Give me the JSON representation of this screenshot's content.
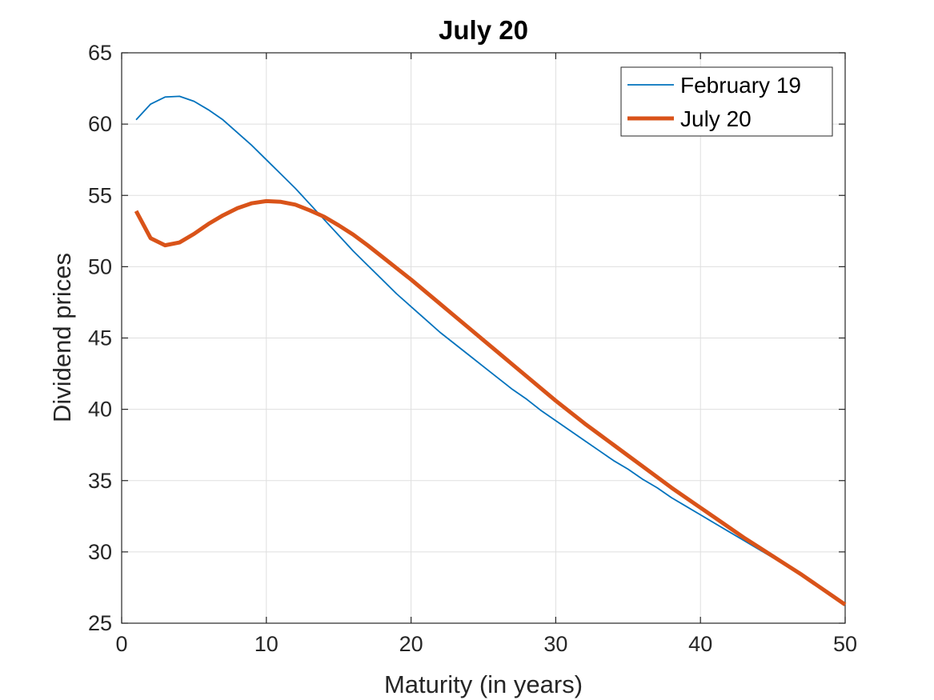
{
  "chart_data": {
    "type": "line",
    "title": "July 20",
    "xlabel": "Maturity (in years)",
    "ylabel": "Dividend prices",
    "xlim": [
      0,
      50
    ],
    "ylim": [
      25,
      65
    ],
    "xticks": [
      0,
      10,
      20,
      30,
      40,
      50
    ],
    "yticks": [
      25,
      30,
      35,
      40,
      45,
      50,
      55,
      60,
      65
    ],
    "grid": true,
    "legend_position": "top-right",
    "x": [
      1,
      2,
      3,
      4,
      5,
      6,
      7,
      8,
      9,
      10,
      11,
      12,
      13,
      14,
      15,
      16,
      17,
      18,
      19,
      20,
      21,
      22,
      23,
      24,
      25,
      26,
      27,
      28,
      29,
      30,
      31,
      32,
      33,
      34,
      35,
      36,
      37,
      38,
      39,
      40,
      41,
      42,
      43,
      44,
      45,
      46,
      47,
      48,
      49,
      50
    ],
    "series": [
      {
        "name": "February 19",
        "color": "#0072BD",
        "values": [
          60.3,
          61.4,
          61.9,
          61.95,
          61.6,
          61.0,
          60.3,
          59.4,
          58.5,
          57.5,
          56.5,
          55.5,
          54.4,
          53.3,
          52.2,
          51.1,
          50.1,
          49.1,
          48.1,
          47.2,
          46.3,
          45.4,
          44.6,
          43.8,
          43.0,
          42.2,
          41.4,
          40.7,
          39.9,
          39.2,
          38.5,
          37.8,
          37.1,
          36.4,
          35.8,
          35.1,
          34.5,
          33.8,
          33.2,
          32.6,
          32.0,
          31.4,
          30.8,
          30.2,
          29.6,
          29.0,
          28.4,
          27.7,
          27.0,
          26.3
        ]
      },
      {
        "name": "July 20",
        "color": "#D95319",
        "values": [
          53.9,
          52.0,
          51.5,
          51.7,
          52.3,
          53.0,
          53.6,
          54.1,
          54.45,
          54.6,
          54.55,
          54.35,
          53.95,
          53.5,
          52.9,
          52.25,
          51.5,
          50.7,
          49.9,
          49.1,
          48.25,
          47.4,
          46.55,
          45.7,
          44.85,
          44.0,
          43.15,
          42.3,
          41.45,
          40.6,
          39.8,
          39.0,
          38.25,
          37.5,
          36.75,
          36.0,
          35.25,
          34.5,
          33.8,
          33.1,
          32.4,
          31.7,
          31.0,
          30.35,
          29.7,
          29.05,
          28.4,
          27.7,
          27.0,
          26.3
        ]
      }
    ]
  }
}
